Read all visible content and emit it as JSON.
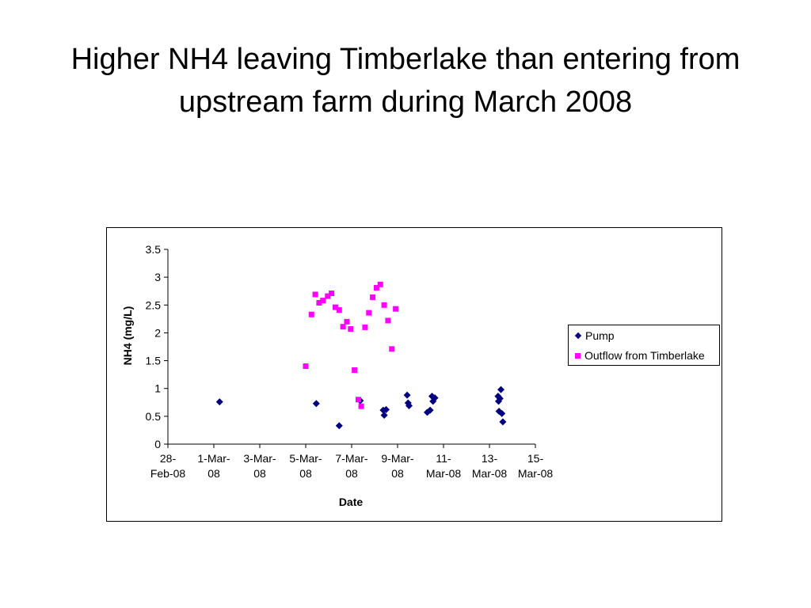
{
  "slide": {
    "title_line1": "Higher NH4 leaving Timberlake than entering from",
    "title_line2": "upstream farm during March 2008"
  },
  "chart_data": {
    "type": "scatter",
    "title": "",
    "xlabel": "Date",
    "ylabel": "NH4 (mg/L)",
    "xlim": [
      "2008-02-28",
      "2008-03-15"
    ],
    "ylim": [
      0,
      3.5
    ],
    "y_ticks": [
      0,
      0.5,
      1,
      1.5,
      2,
      2.5,
      3,
      3.5
    ],
    "y_tick_labels": [
      "0",
      "0.5",
      "1",
      "1.5",
      "2",
      "2.5",
      "3",
      "3.5"
    ],
    "x_ticks": [
      {
        "date": "2008-02-28",
        "line1": "28-",
        "line2": "Feb-08"
      },
      {
        "date": "2008-03-01",
        "line1": "1-Mar-",
        "line2": "08"
      },
      {
        "date": "2008-03-03",
        "line1": "3-Mar-",
        "line2": "08"
      },
      {
        "date": "2008-03-05",
        "line1": "5-Mar-",
        "line2": "08"
      },
      {
        "date": "2008-03-07",
        "line1": "7-Mar-",
        "line2": "08"
      },
      {
        "date": "2008-03-09",
        "line1": "9-Mar-",
        "line2": "08"
      },
      {
        "date": "2008-03-11",
        "line1": "11-",
        "line2": "Mar-08"
      },
      {
        "date": "2008-03-13",
        "line1": "13-",
        "line2": "Mar-08"
      },
      {
        "date": "2008-03-15",
        "line1": "15-",
        "line2": "Mar-08"
      }
    ],
    "grid": false,
    "legend_position": "right",
    "series": [
      {
        "name": "Pump",
        "marker": "diamond",
        "color": "#000080",
        "points": [
          {
            "x": "2008-03-01 06:00",
            "y": 0.76
          },
          {
            "x": "2008-03-05 11:00",
            "y": 0.73
          },
          {
            "x": "2008-03-06 11:00",
            "y": 0.33
          },
          {
            "x": "2008-03-07 09:00",
            "y": 0.78
          },
          {
            "x": "2008-03-08 09:00",
            "y": 0.61
          },
          {
            "x": "2008-03-08 10:00",
            "y": 0.52
          },
          {
            "x": "2008-03-08 12:00",
            "y": 0.62
          },
          {
            "x": "2008-03-09 10:00",
            "y": 0.88
          },
          {
            "x": "2008-03-09 11:00",
            "y": 0.74
          },
          {
            "x": "2008-03-09 12:00",
            "y": 0.69
          },
          {
            "x": "2008-03-10 07:00",
            "y": 0.57
          },
          {
            "x": "2008-03-10 10:00",
            "y": 0.61
          },
          {
            "x": "2008-03-10 12:00",
            "y": 0.86
          },
          {
            "x": "2008-03-10 13:00",
            "y": 0.77
          },
          {
            "x": "2008-03-10 15:00",
            "y": 0.83
          },
          {
            "x": "2008-03-13 09:00",
            "y": 0.86
          },
          {
            "x": "2008-03-13 09:30",
            "y": 0.77
          },
          {
            "x": "2008-03-13 10:00",
            "y": 0.59
          },
          {
            "x": "2008-03-13 11:00",
            "y": 0.82
          },
          {
            "x": "2008-03-13 12:00",
            "y": 0.98
          },
          {
            "x": "2008-03-13 13:00",
            "y": 0.55
          },
          {
            "x": "2008-03-13 14:00",
            "y": 0.4
          }
        ]
      },
      {
        "name": "Outflow from Timberlake",
        "marker": "square",
        "color": "#ff00ff",
        "points": [
          {
            "x": "2008-03-05 00:00",
            "y": 1.4
          },
          {
            "x": "2008-03-05 06:00",
            "y": 2.33
          },
          {
            "x": "2008-03-05 10:00",
            "y": 2.69
          },
          {
            "x": "2008-03-05 14:00",
            "y": 2.54
          },
          {
            "x": "2008-03-05 18:00",
            "y": 2.58
          },
          {
            "x": "2008-03-05 23:00",
            "y": 2.66
          },
          {
            "x": "2008-03-06 03:00",
            "y": 2.71
          },
          {
            "x": "2008-03-06 07:00",
            "y": 2.46
          },
          {
            "x": "2008-03-06 11:00",
            "y": 2.41
          },
          {
            "x": "2008-03-06 15:00",
            "y": 2.11
          },
          {
            "x": "2008-03-06 19:00",
            "y": 2.2
          },
          {
            "x": "2008-03-06 23:00",
            "y": 2.07
          },
          {
            "x": "2008-03-07 03:00",
            "y": 1.33
          },
          {
            "x": "2008-03-07 07:00",
            "y": 0.8
          },
          {
            "x": "2008-03-07 10:00",
            "y": 0.68
          },
          {
            "x": "2008-03-07 14:00",
            "y": 2.1
          },
          {
            "x": "2008-03-07 18:00",
            "y": 2.36
          },
          {
            "x": "2008-03-07 22:00",
            "y": 2.64
          },
          {
            "x": "2008-03-08 02:00",
            "y": 2.81
          },
          {
            "x": "2008-03-08 06:00",
            "y": 2.87
          },
          {
            "x": "2008-03-08 10:00",
            "y": 2.5
          },
          {
            "x": "2008-03-08 14:00",
            "y": 2.22
          },
          {
            "x": "2008-03-08 18:00",
            "y": 1.71
          },
          {
            "x": "2008-03-08 22:00",
            "y": 2.43
          }
        ]
      }
    ]
  }
}
